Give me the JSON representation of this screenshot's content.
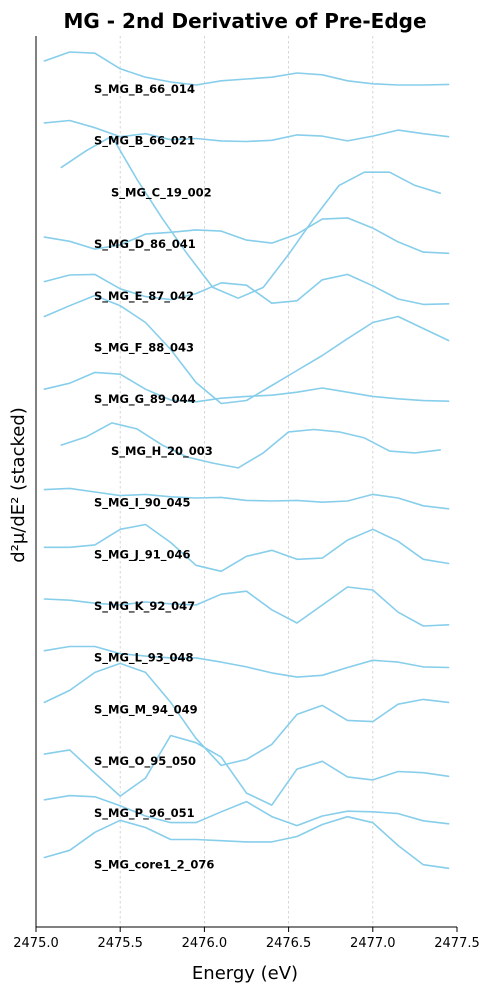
{
  "chart_data": {
    "type": "line",
    "title": "MG - 2nd Derivative of Pre-Edge",
    "xlabel": "Energy (eV)",
    "ylabel": "d²μ/dE² (stacked)",
    "xlim": [
      2475.0,
      2477.5
    ],
    "xticks": [
      "2475.0",
      "2475.5",
      "2476.0",
      "2476.5",
      "2477.0",
      "2477.5"
    ],
    "grid": "vertical dashed",
    "line_color": "#87ceeb",
    "series": [
      {
        "name": "S_MG_B_66_014",
        "x": [
          2475.05,
          2475.2,
          2475.35,
          2475.5,
          2475.65,
          2475.8,
          2475.95,
          2476.1,
          2476.25,
          2476.4,
          2476.55,
          2476.7,
          2476.85,
          2477.0,
          2477.15,
          2477.3,
          2477.45
        ],
        "y": [
          0.35,
          0.5,
          0.48,
          0.22,
          0.08,
          0.0,
          -0.05,
          0.02,
          0.05,
          0.08,
          0.15,
          0.12,
          0.02,
          -0.03,
          -0.05,
          -0.05,
          -0.04
        ]
      },
      {
        "name": "S_MG_B_66_021",
        "x": [
          2475.05,
          2475.2,
          2475.35,
          2475.5,
          2475.65,
          2475.8,
          2475.95,
          2476.1,
          2476.25,
          2476.4,
          2476.55,
          2476.7,
          2476.85,
          2477.0,
          2477.15,
          2477.3,
          2477.45
        ],
        "y": [
          0.18,
          0.22,
          0.1,
          -0.05,
          0.0,
          -0.1,
          -0.08,
          -0.12,
          -0.13,
          -0.11,
          -0.02,
          -0.04,
          -0.12,
          -0.04,
          0.06,
          0.0,
          -0.05
        ]
      },
      {
        "name": "S_MG_C_19_002",
        "x": [
          2475.15,
          2475.3,
          2475.45,
          2475.6,
          2475.75,
          2475.9,
          2476.05,
          2476.2,
          2476.35,
          2476.5,
          2476.65,
          2476.8,
          2476.95,
          2477.1,
          2477.25,
          2477.4
        ],
        "y": [
          0.3,
          0.58,
          0.82,
          0.1,
          -0.55,
          -1.15,
          -1.7,
          -1.88,
          -1.7,
          -1.15,
          -0.55,
          0.0,
          0.22,
          0.22,
          0.0,
          -0.13
        ]
      },
      {
        "name": "S_MG_D_86_041",
        "x": [
          2475.05,
          2475.2,
          2475.35,
          2475.5,
          2475.65,
          2475.8,
          2475.95,
          2476.1,
          2476.25,
          2476.4,
          2476.55,
          2476.7,
          2476.85,
          2477.0,
          2477.15,
          2477.3,
          2477.45
        ],
        "y": [
          0.0,
          -0.07,
          -0.2,
          -0.13,
          0.05,
          0.08,
          0.12,
          0.1,
          -0.05,
          -0.1,
          0.05,
          0.3,
          0.32,
          0.15,
          -0.08,
          -0.25,
          -0.27
        ]
      },
      {
        "name": "S_MG_E_87_042",
        "x": [
          2475.05,
          2475.2,
          2475.35,
          2475.5,
          2475.65,
          2475.8,
          2475.95,
          2476.1,
          2476.25,
          2476.4,
          2476.55,
          2476.7,
          2476.85,
          2477.0,
          2477.15,
          2477.3,
          2477.45
        ],
        "y": [
          0.12,
          0.23,
          0.24,
          0.0,
          -0.13,
          -0.18,
          -0.08,
          0.1,
          0.06,
          -0.24,
          -0.2,
          0.15,
          0.24,
          0.05,
          -0.17,
          -0.26,
          -0.25
        ]
      },
      {
        "name": "S_MG_F_88_043",
        "x": [
          2475.05,
          2475.2,
          2475.35,
          2475.5,
          2475.65,
          2475.8,
          2475.95,
          2476.1,
          2476.25,
          2476.4,
          2476.55,
          2476.7,
          2476.85,
          2477.0,
          2477.15,
          2477.3,
          2477.45
        ],
        "y": [
          0.4,
          0.58,
          0.75,
          0.58,
          0.3,
          -0.15,
          -0.7,
          -1.05,
          -1.0,
          -0.75,
          -0.5,
          -0.25,
          0.03,
          0.3,
          0.4,
          0.2,
          0.0
        ]
      },
      {
        "name": "S_MG_G_89_044",
        "x": [
          2475.05,
          2475.2,
          2475.35,
          2475.5,
          2475.65,
          2475.8,
          2475.95,
          2476.1,
          2476.25,
          2476.4,
          2476.55,
          2476.7,
          2476.85,
          2477.0,
          2477.15,
          2477.3,
          2477.45
        ],
        "y": [
          0.05,
          0.15,
          0.33,
          0.3,
          0.05,
          -0.13,
          -0.16,
          -0.1,
          -0.07,
          -0.05,
          0.0,
          0.07,
          0.0,
          -0.07,
          -0.11,
          -0.14,
          -0.15
        ]
      },
      {
        "name": "S_MG_H_20_003",
        "x": [
          2475.15,
          2475.3,
          2475.45,
          2475.6,
          2475.75,
          2475.9,
          2476.05,
          2476.2,
          2476.35,
          2476.5,
          2476.65,
          2476.8,
          2476.95,
          2477.1,
          2477.25,
          2477.4
        ],
        "y": [
          -0.02,
          0.12,
          0.35,
          0.25,
          -0.02,
          -0.22,
          -0.32,
          -0.4,
          -0.15,
          0.2,
          0.24,
          0.2,
          0.1,
          -0.12,
          -0.15,
          -0.1
        ]
      },
      {
        "name": "S_MG_I_90_045",
        "x": [
          2475.05,
          2475.2,
          2475.35,
          2475.5,
          2475.65,
          2475.8,
          2475.95,
          2476.1,
          2476.25,
          2476.4,
          2476.55,
          2476.7,
          2476.85,
          2477.0,
          2477.15,
          2477.3,
          2477.45
        ],
        "y": [
          0.1,
          0.12,
          0.06,
          0.0,
          0.02,
          -0.02,
          -0.04,
          -0.03,
          -0.08,
          -0.09,
          -0.08,
          -0.11,
          -0.09,
          0.02,
          -0.04,
          -0.17,
          -0.22
        ]
      },
      {
        "name": "S_MG_J_91_046",
        "x": [
          2475.05,
          2475.2,
          2475.35,
          2475.5,
          2475.65,
          2475.8,
          2475.95,
          2476.1,
          2476.25,
          2476.4,
          2476.55,
          2476.7,
          2476.85,
          2477.0,
          2477.15,
          2477.3,
          2477.45
        ],
        "y": [
          0.0,
          0.0,
          0.04,
          0.3,
          0.38,
          0.08,
          -0.3,
          -0.4,
          -0.15,
          -0.05,
          -0.2,
          -0.18,
          0.12,
          0.3,
          0.1,
          -0.2,
          -0.27
        ]
      },
      {
        "name": "S_MG_K_92_047",
        "x": [
          2475.05,
          2475.2,
          2475.35,
          2475.5,
          2475.65,
          2475.8,
          2475.95,
          2476.1,
          2476.25,
          2476.4,
          2476.55,
          2476.7,
          2476.85,
          2477.0,
          2477.15,
          2477.3,
          2477.45
        ],
        "y": [
          0.0,
          -0.02,
          -0.07,
          -0.1,
          -0.05,
          -0.08,
          -0.1,
          0.08,
          0.13,
          -0.18,
          -0.4,
          -0.1,
          0.2,
          0.15,
          -0.22,
          -0.45,
          -0.43
        ]
      },
      {
        "name": "S_MG_L_93_048",
        "x": [
          2475.05,
          2475.2,
          2475.35,
          2475.5,
          2475.65,
          2475.8,
          2475.95,
          2476.1,
          2476.25,
          2476.4,
          2476.55,
          2476.7,
          2476.85,
          2477.0,
          2477.15,
          2477.3,
          2477.45
        ],
        "y": [
          0.0,
          0.07,
          0.07,
          -0.05,
          -0.09,
          -0.12,
          -0.12,
          -0.19,
          -0.27,
          -0.37,
          -0.44,
          -0.41,
          -0.28,
          -0.16,
          -0.19,
          -0.27,
          -0.28
        ]
      },
      {
        "name": "S_MG_M_94_049",
        "x": [
          2475.05,
          2475.2,
          2475.35,
          2475.5,
          2475.65,
          2475.8,
          2475.95,
          2476.1,
          2476.25,
          2476.4,
          2476.55,
          2476.7,
          2476.85,
          2477.0,
          2477.15,
          2477.3,
          2477.45
        ],
        "y": [
          0.0,
          0.2,
          0.5,
          0.65,
          0.5,
          0.0,
          -0.6,
          -1.05,
          -0.95,
          -0.7,
          -0.2,
          -0.05,
          -0.3,
          -0.32,
          -0.03,
          0.05,
          0.0
        ]
      },
      {
        "name": "S_MG_O_95_050",
        "x": [
          2475.05,
          2475.2,
          2475.35,
          2475.5,
          2475.65,
          2475.8,
          2475.95,
          2476.1,
          2476.25,
          2476.4,
          2476.55,
          2476.7,
          2476.85,
          2477.0,
          2477.15,
          2477.3,
          2477.45
        ],
        "y": [
          0.0,
          0.07,
          -0.32,
          -0.7,
          -0.4,
          0.31,
          0.19,
          -0.05,
          -0.65,
          -0.85,
          -0.25,
          -0.12,
          -0.38,
          -0.43,
          -0.29,
          -0.31,
          -0.37
        ]
      },
      {
        "name": "S_MG_P_96_051",
        "x": [
          2475.05,
          2475.2,
          2475.35,
          2475.5,
          2475.65,
          2475.8,
          2475.95,
          2476.1,
          2476.25,
          2476.4,
          2476.55,
          2476.7,
          2476.85,
          2477.0,
          2477.15,
          2477.3,
          2477.45
        ],
        "y": [
          0.1,
          0.17,
          0.15,
          0.0,
          -0.17,
          -0.28,
          -0.28,
          -0.1,
          0.07,
          -0.18,
          -0.33,
          -0.17,
          -0.09,
          -0.1,
          -0.13,
          -0.25,
          -0.3
        ]
      },
      {
        "name": "S_MG_core1_2_076",
        "x": [
          2475.05,
          2475.2,
          2475.35,
          2475.5,
          2475.65,
          2475.8,
          2475.95,
          2476.1,
          2476.25,
          2476.4,
          2476.55,
          2476.7,
          2476.85,
          2477.0,
          2477.15,
          2477.3,
          2477.45
        ],
        "y": [
          0.0,
          0.12,
          0.42,
          0.62,
          0.5,
          0.3,
          0.3,
          0.28,
          0.26,
          0.26,
          0.35,
          0.55,
          0.68,
          0.58,
          0.2,
          -0.12,
          -0.18
        ]
      }
    ]
  }
}
